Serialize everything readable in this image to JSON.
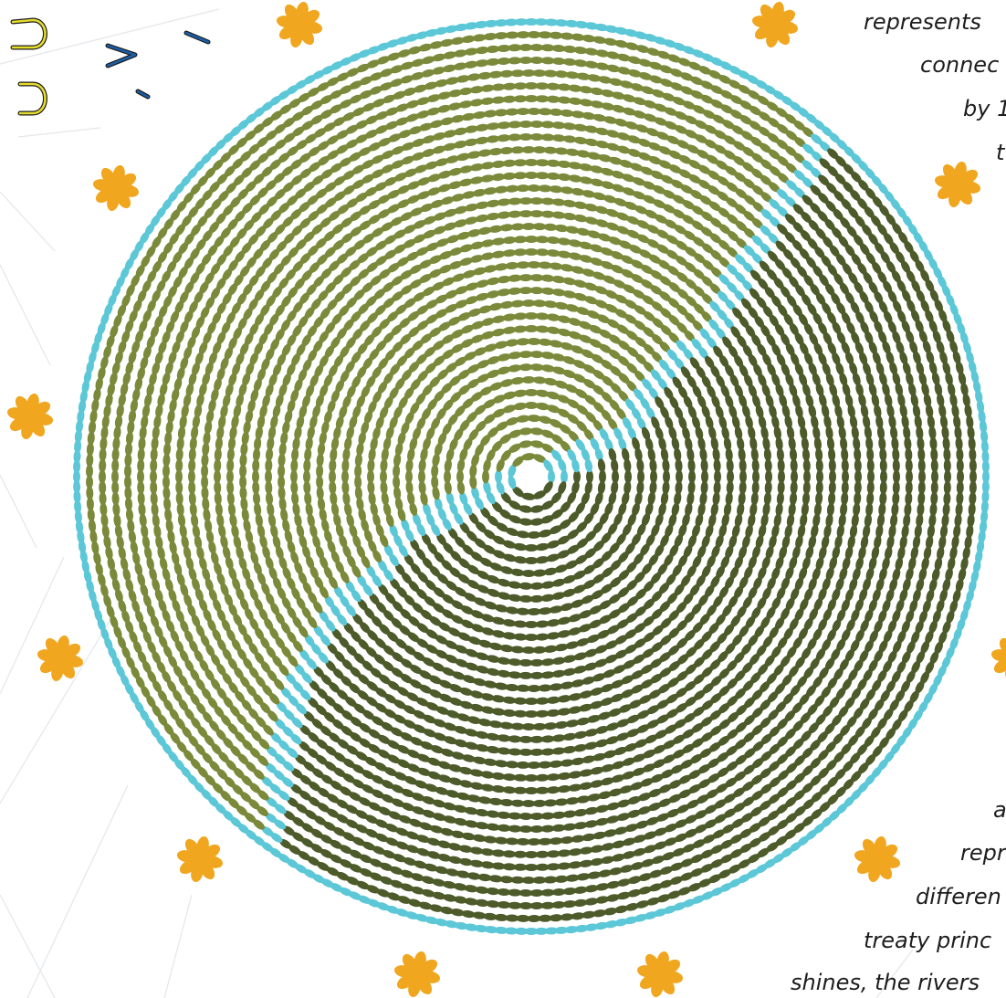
{
  "colors": {
    "light_olive": "#7a8a3a",
    "dark_olive": "#4d5a29",
    "turquoise": "#5cc7d6",
    "flower_orange": "#f1a61f",
    "glyph_yellow": "#e6dc2c",
    "glyph_blue": "#1b5ea6",
    "line_gray": "#e3e6ea",
    "text": "#1d1d1d"
  },
  "icons": [
    "flower-icon",
    "beadwork-circle",
    "syllabic-glyph"
  ],
  "caption_top": [
    "represents",
    "connec",
    "by 1",
    "t"
  ],
  "caption_bottom": [
    "a",
    "repr",
    "differen",
    "treaty princ",
    "shines, the rivers"
  ]
}
